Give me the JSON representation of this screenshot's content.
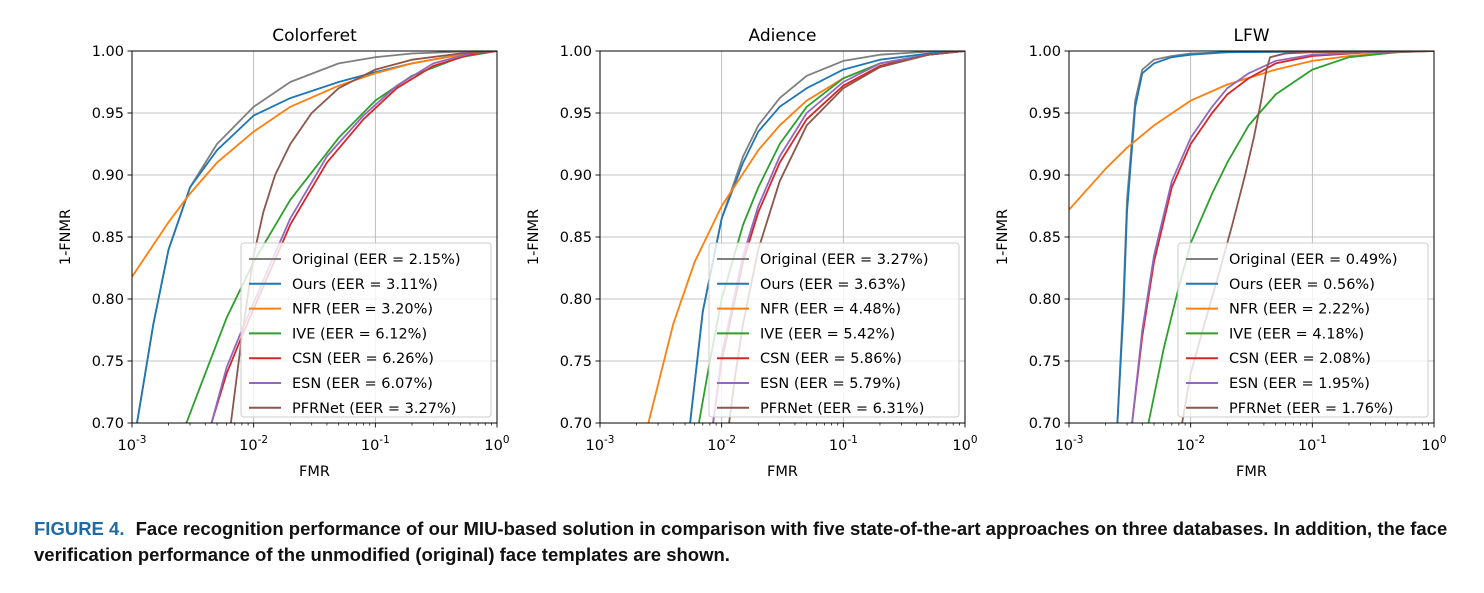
{
  "caption": {
    "label": "FIGURE 4.",
    "text": "Face recognition performance of our MIU-based solution in comparison with five state-of-the-art approaches on three databases. In addition, the face verification performance of the unmodified (original) face templates are shown."
  },
  "chart_data": [
    {
      "type": "line",
      "title": "Colorferet",
      "xlabel": "FMR",
      "ylabel": "1-FNMR",
      "x_scale": "log",
      "xlim": [
        0.001,
        1
      ],
      "ylim": [
        0.7,
        1.0
      ],
      "grid": true,
      "legend_position": "lower-right",
      "x_ticks": [
        "10^-3",
        "10^-2",
        "10^-1",
        "10^0"
      ],
      "y_ticks": [
        "0.70",
        "0.75",
        "0.80",
        "0.85",
        "0.90",
        "0.95",
        "1.00"
      ],
      "series": [
        {
          "name": "Original (EER = 2.15%)",
          "color": "#7f7f7f",
          "x": [
            0.0011,
            0.0015,
            0.002,
            0.003,
            0.005,
            0.01,
            0.02,
            0.05,
            0.1,
            0.2,
            0.5,
            1
          ],
          "y": [
            0.7,
            0.78,
            0.84,
            0.89,
            0.925,
            0.955,
            0.975,
            0.99,
            0.995,
            0.998,
            0.9995,
            1.0
          ]
        },
        {
          "name": "Ours (EER = 3.11%)",
          "color": "#1f77b4",
          "x": [
            0.0011,
            0.0015,
            0.002,
            0.003,
            0.005,
            0.01,
            0.02,
            0.05,
            0.1,
            0.2,
            0.5,
            1
          ],
          "y": [
            0.7,
            0.78,
            0.84,
            0.89,
            0.92,
            0.948,
            0.962,
            0.975,
            0.983,
            0.99,
            0.997,
            1.0
          ]
        },
        {
          "name": "NFR (EER = 3.20%)",
          "color": "#ff7f0e",
          "x": [
            0.001,
            0.002,
            0.003,
            0.005,
            0.01,
            0.02,
            0.05,
            0.1,
            0.2,
            0.5,
            1
          ],
          "y": [
            0.818,
            0.862,
            0.885,
            0.91,
            0.935,
            0.955,
            0.972,
            0.982,
            0.99,
            0.997,
            1.0
          ]
        },
        {
          "name": "IVE (EER = 6.12%)",
          "color": "#2ca02c",
          "x": [
            0.0028,
            0.004,
            0.006,
            0.01,
            0.02,
            0.05,
            0.1,
            0.2,
            0.5,
            1
          ],
          "y": [
            0.7,
            0.74,
            0.785,
            0.83,
            0.88,
            0.93,
            0.96,
            0.98,
            0.995,
            1.0
          ]
        },
        {
          "name": "CSN (EER = 6.26%)",
          "color": "#d62728",
          "x": [
            0.0045,
            0.006,
            0.008,
            0.012,
            0.02,
            0.04,
            0.08,
            0.15,
            0.3,
            0.6,
            1
          ],
          "y": [
            0.7,
            0.74,
            0.77,
            0.81,
            0.86,
            0.91,
            0.945,
            0.97,
            0.988,
            0.997,
            1.0
          ]
        },
        {
          "name": "ESN (EER = 6.07%)",
          "color": "#9467bd",
          "x": [
            0.0045,
            0.006,
            0.008,
            0.012,
            0.02,
            0.04,
            0.08,
            0.15,
            0.3,
            0.6,
            1
          ],
          "y": [
            0.7,
            0.745,
            0.775,
            0.815,
            0.865,
            0.915,
            0.948,
            0.972,
            0.99,
            0.998,
            1.0
          ]
        },
        {
          "name": "PFRNet (EER = 3.27%)",
          "color": "#8c564b",
          "x": [
            0.0065,
            0.008,
            0.01,
            0.012,
            0.015,
            0.02,
            0.03,
            0.05,
            0.1,
            0.2,
            0.5,
            1
          ],
          "y": [
            0.7,
            0.77,
            0.835,
            0.87,
            0.9,
            0.925,
            0.95,
            0.97,
            0.985,
            0.993,
            0.998,
            1.0
          ]
        }
      ]
    },
    {
      "type": "line",
      "title": "Adience",
      "xlabel": "FMR",
      "ylabel": "1-FNMR",
      "x_scale": "log",
      "xlim": [
        0.001,
        1
      ],
      "ylim": [
        0.7,
        1.0
      ],
      "grid": true,
      "legend_position": "lower-right",
      "x_ticks": [
        "10^-3",
        "10^-2",
        "10^-1",
        "10^0"
      ],
      "y_ticks": [
        "0.70",
        "0.75",
        "0.80",
        "0.85",
        "0.90",
        "0.95",
        "1.00"
      ],
      "series": [
        {
          "name": "Original (EER = 3.27%)",
          "color": "#7f7f7f",
          "x": [
            0.0055,
            0.007,
            0.01,
            0.015,
            0.02,
            0.03,
            0.05,
            0.1,
            0.2,
            0.5,
            1
          ],
          "y": [
            0.7,
            0.79,
            0.865,
            0.915,
            0.94,
            0.962,
            0.98,
            0.992,
            0.997,
            0.9995,
            1.0
          ]
        },
        {
          "name": "Ours (EER = 3.63%)",
          "color": "#1f77b4",
          "x": [
            0.0055,
            0.007,
            0.01,
            0.015,
            0.02,
            0.03,
            0.05,
            0.1,
            0.2,
            0.5,
            1
          ],
          "y": [
            0.7,
            0.79,
            0.865,
            0.91,
            0.935,
            0.955,
            0.97,
            0.985,
            0.993,
            0.998,
            1.0
          ]
        },
        {
          "name": "NFR (EER = 4.48%)",
          "color": "#ff7f0e",
          "x": [
            0.0025,
            0.004,
            0.006,
            0.01,
            0.02,
            0.03,
            0.05,
            0.1,
            0.2,
            0.5,
            1
          ],
          "y": [
            0.7,
            0.78,
            0.83,
            0.875,
            0.92,
            0.94,
            0.96,
            0.978,
            0.99,
            0.997,
            1.0
          ]
        },
        {
          "name": "IVE (EER = 5.42%)",
          "color": "#2ca02c",
          "x": [
            0.0065,
            0.008,
            0.01,
            0.015,
            0.02,
            0.03,
            0.05,
            0.1,
            0.2,
            0.5,
            1
          ],
          "y": [
            0.7,
            0.75,
            0.8,
            0.86,
            0.89,
            0.925,
            0.955,
            0.978,
            0.99,
            0.997,
            1.0
          ]
        },
        {
          "name": "CSN (EER = 5.86%)",
          "color": "#d62728",
          "x": [
            0.0085,
            0.01,
            0.015,
            0.02,
            0.03,
            0.05,
            0.1,
            0.2,
            0.5,
            1
          ],
          "y": [
            0.7,
            0.75,
            0.83,
            0.87,
            0.91,
            0.945,
            0.972,
            0.988,
            0.997,
            1.0
          ]
        },
        {
          "name": "ESN (EER = 5.79%)",
          "color": "#9467bd",
          "x": [
            0.0085,
            0.01,
            0.015,
            0.02,
            0.03,
            0.05,
            0.1,
            0.2,
            0.5,
            1
          ],
          "y": [
            0.7,
            0.755,
            0.835,
            0.875,
            0.915,
            0.95,
            0.975,
            0.99,
            0.997,
            1.0
          ]
        },
        {
          "name": "PFRNet (EER = 6.31%)",
          "color": "#8c564b",
          "x": [
            0.0115,
            0.013,
            0.015,
            0.02,
            0.03,
            0.05,
            0.1,
            0.2,
            0.5,
            1
          ],
          "y": [
            0.7,
            0.74,
            0.78,
            0.84,
            0.895,
            0.94,
            0.97,
            0.987,
            0.997,
            1.0
          ]
        }
      ]
    },
    {
      "type": "line",
      "title": "LFW",
      "xlabel": "FMR",
      "ylabel": "1-FNMR",
      "x_scale": "log",
      "xlim": [
        0.001,
        1
      ],
      "ylim": [
        0.7,
        1.0
      ],
      "grid": true,
      "legend_position": "lower-right",
      "x_ticks": [
        "10^-3",
        "10^-2",
        "10^-1",
        "10^0"
      ],
      "y_ticks": [
        "0.70",
        "0.75",
        "0.80",
        "0.85",
        "0.90",
        "0.95",
        "1.00"
      ],
      "series": [
        {
          "name": "Original (EER = 0.49%)",
          "color": "#7f7f7f",
          "x": [
            0.0025,
            0.0028,
            0.003,
            0.0035,
            0.004,
            0.005,
            0.007,
            0.01,
            0.02,
            0.1,
            1
          ],
          "y": [
            0.7,
            0.8,
            0.88,
            0.96,
            0.985,
            0.993,
            0.996,
            0.998,
            0.999,
            0.9995,
            1.0
          ]
        },
        {
          "name": "Ours (EER = 0.56%)",
          "color": "#1f77b4",
          "x": [
            0.0025,
            0.0028,
            0.003,
            0.0035,
            0.004,
            0.005,
            0.007,
            0.01,
            0.02,
            0.1,
            1
          ],
          "y": [
            0.7,
            0.79,
            0.87,
            0.955,
            0.982,
            0.99,
            0.995,
            0.997,
            0.999,
            0.9995,
            1.0
          ]
        },
        {
          "name": "NFR (EER = 2.22%)",
          "color": "#ff7f0e",
          "x": [
            0.001,
            0.002,
            0.003,
            0.005,
            0.01,
            0.02,
            0.05,
            0.1,
            0.2,
            0.5,
            1
          ],
          "y": [
            0.872,
            0.905,
            0.922,
            0.94,
            0.96,
            0.973,
            0.985,
            0.992,
            0.996,
            0.999,
            1.0
          ]
        },
        {
          "name": "IVE (EER = 4.18%)",
          "color": "#2ca02c",
          "x": [
            0.0045,
            0.006,
            0.008,
            0.01,
            0.015,
            0.02,
            0.03,
            0.05,
            0.1,
            0.2,
            0.5,
            1
          ],
          "y": [
            0.7,
            0.76,
            0.81,
            0.845,
            0.885,
            0.91,
            0.94,
            0.965,
            0.985,
            0.995,
            0.999,
            1.0
          ]
        },
        {
          "name": "CSN (EER = 2.08%)",
          "color": "#d62728",
          "x": [
            0.0033,
            0.004,
            0.005,
            0.007,
            0.01,
            0.015,
            0.02,
            0.03,
            0.05,
            0.1,
            0.3,
            1
          ],
          "y": [
            0.7,
            0.77,
            0.83,
            0.89,
            0.925,
            0.95,
            0.965,
            0.978,
            0.99,
            0.996,
            0.999,
            1.0
          ]
        },
        {
          "name": "ESN (EER = 1.95%)",
          "color": "#9467bd",
          "x": [
            0.0033,
            0.004,
            0.005,
            0.007,
            0.01,
            0.015,
            0.02,
            0.03,
            0.05,
            0.1,
            0.3,
            1
          ],
          "y": [
            0.7,
            0.775,
            0.835,
            0.895,
            0.93,
            0.955,
            0.97,
            0.982,
            0.992,
            0.997,
            0.999,
            1.0
          ]
        },
        {
          "name": "PFRNet (EER = 1.76%)",
          "color": "#8c564b",
          "x": [
            0.0085,
            0.01,
            0.013,
            0.017,
            0.022,
            0.028,
            0.033,
            0.038,
            0.042,
            0.045,
            0.06,
            0.1,
            0.3,
            1
          ],
          "y": [
            0.7,
            0.74,
            0.78,
            0.82,
            0.86,
            0.9,
            0.93,
            0.96,
            0.985,
            0.995,
            0.998,
            0.999,
            0.9995,
            1.0
          ]
        }
      ]
    }
  ]
}
